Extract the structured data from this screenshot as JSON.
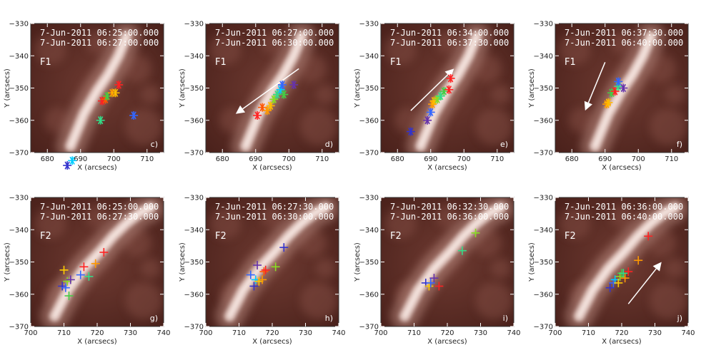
{
  "chart_data": [
    {
      "type": "scatter",
      "panel": "c)",
      "feature": "F1",
      "times": [
        "7-Jun-2011 06:25:00.000",
        "7-Jun-2011 06:27:00.000"
      ],
      "xlabel": "X (arcsecs)",
      "ylabel": "Y (arcsecs)",
      "xlim": [
        675,
        715
      ],
      "ylim": [
        -370,
        -330
      ],
      "xticks": [
        680,
        690,
        700,
        710
      ],
      "yticks": [
        -370,
        -360,
        -350,
        -340,
        -330
      ],
      "marker": "asterisk",
      "arrow": null,
      "points": [
        {
          "x": 686,
          "y": -374,
          "color": "#3333cc"
        },
        {
          "x": 687.5,
          "y": -372.5,
          "color": "#00ccff"
        },
        {
          "x": 706,
          "y": -358.5,
          "color": "#3366ff"
        },
        {
          "x": 696,
          "y": -360,
          "color": "#33dd88"
        },
        {
          "x": 696.5,
          "y": -354,
          "color": "#ff2222"
        },
        {
          "x": 697.5,
          "y": -353.5,
          "color": "#ff5500"
        },
        {
          "x": 698,
          "y": -352.5,
          "color": "#44cc44"
        },
        {
          "x": 699.5,
          "y": -351.5,
          "color": "#ff9900"
        },
        {
          "x": 700.5,
          "y": -351.5,
          "color": "#ffbb00"
        },
        {
          "x": 701.5,
          "y": -349,
          "color": "#ff2222"
        }
      ]
    },
    {
      "type": "scatter",
      "panel": "d)",
      "feature": "F1",
      "times": [
        "7-Jun-2011 06:27:00.000",
        "7-Jun-2011 06:30:00.000"
      ],
      "xlabel": "X (arcsecs)",
      "ylabel": "Y (arcsecs)",
      "xlim": [
        675,
        715
      ],
      "ylim": [
        -370,
        -330
      ],
      "xticks": [
        680,
        690,
        700,
        710
      ],
      "yticks": [
        -370,
        -360,
        -350,
        -340,
        -330
      ],
      "marker": "asterisk",
      "arrow": {
        "from": [
          703,
          -344
        ],
        "to": [
          684,
          -358
        ]
      },
      "points": [
        {
          "x": 690.5,
          "y": -358.5,
          "color": "#ff2222"
        },
        {
          "x": 692,
          "y": -356,
          "color": "#ff5500"
        },
        {
          "x": 693.5,
          "y": -357,
          "color": "#ff9900"
        },
        {
          "x": 694.5,
          "y": -355.5,
          "color": "#ffbb00"
        },
        {
          "x": 695.5,
          "y": -353.5,
          "color": "#88dd22"
        },
        {
          "x": 696.5,
          "y": -352,
          "color": "#33dd88"
        },
        {
          "x": 697.5,
          "y": -350.5,
          "color": "#00ccff"
        },
        {
          "x": 698,
          "y": -349,
          "color": "#3366ff"
        },
        {
          "x": 698.5,
          "y": -352,
          "color": "#44cc44"
        },
        {
          "x": 701.5,
          "y": -349,
          "color": "#6633aa"
        }
      ]
    },
    {
      "type": "scatter",
      "panel": "e)",
      "feature": "F1",
      "times": [
        "7-Jun-2011 06:34:00.000",
        "7-Jun-2011 06:37:30.000"
      ],
      "xlabel": "X (arcsecs)",
      "ylabel": "Y (arcsecs)",
      "xlim": [
        675,
        715
      ],
      "ylim": [
        -370,
        -330
      ],
      "xticks": [
        680,
        690,
        700,
        710
      ],
      "yticks": [
        -370,
        -360,
        -350,
        -340,
        -330
      ],
      "marker": "asterisk",
      "arrow": {
        "from": [
          684,
          -357
        ],
        "to": [
          697,
          -344
        ]
      },
      "points": [
        {
          "x": 684,
          "y": -363.5,
          "color": "#3333cc"
        },
        {
          "x": 689,
          "y": -360,
          "color": "#6633aa"
        },
        {
          "x": 690,
          "y": -357.5,
          "color": "#3366ff"
        },
        {
          "x": 690.5,
          "y": -355,
          "color": "#ff9900"
        },
        {
          "x": 691,
          "y": -354,
          "color": "#ffbb00"
        },
        {
          "x": 692,
          "y": -353.5,
          "color": "#88dd22"
        },
        {
          "x": 693,
          "y": -352.5,
          "color": "#33dd88"
        },
        {
          "x": 694,
          "y": -351,
          "color": "#44cc44"
        },
        {
          "x": 695.5,
          "y": -350.5,
          "color": "#ff2222"
        },
        {
          "x": 696,
          "y": -347,
          "color": "#ff2222"
        }
      ]
    },
    {
      "type": "scatter",
      "panel": "f)",
      "feature": "F1",
      "times": [
        "7-Jun-2011 06:37:30.000",
        "7-Jun-2011 06:40:00.000"
      ],
      "xlabel": "X (arcsecs)",
      "ylabel": "Y (arcsecs)",
      "xlim": [
        675,
        715
      ],
      "ylim": [
        -370,
        -330
      ],
      "xticks": [
        680,
        690,
        700,
        710
      ],
      "yticks": [
        -370,
        -360,
        -350,
        -340,
        -330
      ],
      "marker": "asterisk",
      "arrow": {
        "from": [
          690,
          -342
        ],
        "to": [
          684,
          -357
        ]
      },
      "points": [
        {
          "x": 690.5,
          "y": -355,
          "color": "#ff9900"
        },
        {
          "x": 691,
          "y": -354.5,
          "color": "#ffbb00"
        },
        {
          "x": 692,
          "y": -351.5,
          "color": "#44cc44"
        },
        {
          "x": 693,
          "y": -351,
          "color": "#ff2222"
        },
        {
          "x": 694,
          "y": -349.5,
          "color": "#33dd88"
        },
        {
          "x": 694,
          "y": -348,
          "color": "#3366ff"
        },
        {
          "x": 695.5,
          "y": -350,
          "color": "#6633aa"
        }
      ]
    },
    {
      "type": "scatter",
      "panel": "g)",
      "feature": "F2",
      "times": [
        "7-Jun-2011 06:25:00.000",
        "7-Jun-2011 06:27:30.000"
      ],
      "xlabel": "X (arcsecs)",
      "ylabel": "Y (arcsecs)",
      "xlim": [
        700,
        740
      ],
      "ylim": [
        -370,
        -330
      ],
      "xticks": [
        700,
        710,
        720,
        730,
        740
      ],
      "yticks": [
        -370,
        -360,
        -350,
        -340,
        -330
      ],
      "marker": "plus",
      "arrow": null,
      "points": [
        {
          "x": 710,
          "y": -352.5,
          "color": "#ffcc00"
        },
        {
          "x": 709.5,
          "y": -357.5,
          "color": "#3333cc"
        },
        {
          "x": 710.5,
          "y": -358,
          "color": "#3366ff"
        },
        {
          "x": 711,
          "y": -356,
          "color": "#88dd22"
        },
        {
          "x": 711.5,
          "y": -360.5,
          "color": "#44cc44"
        },
        {
          "x": 712,
          "y": -355.5,
          "color": "#6633aa"
        },
        {
          "x": 715,
          "y": -354,
          "color": "#3366ff"
        },
        {
          "x": 716,
          "y": -351.5,
          "color": "#ff2222"
        },
        {
          "x": 717.5,
          "y": -354.5,
          "color": "#33dd88"
        },
        {
          "x": 719.5,
          "y": -350.5,
          "color": "#ff9900"
        },
        {
          "x": 722,
          "y": -347,
          "color": "#ff2222"
        }
      ]
    },
    {
      "type": "scatter",
      "panel": "h)",
      "feature": "F2",
      "times": [
        "7-Jun-2011 06:27:30.000",
        "7-Jun-2011 06:30:00.000"
      ],
      "xlabel": "X (arcsecs)",
      "ylabel": "Y (arcsecs)",
      "xlim": [
        700,
        740
      ],
      "ylim": [
        -370,
        -330
      ],
      "xticks": [
        700,
        710,
        720,
        730,
        740
      ],
      "yticks": [
        -370,
        -360,
        -350,
        -340,
        -330
      ],
      "marker": "plus",
      "arrow": null,
      "points": [
        {
          "x": 713.5,
          "y": -354,
          "color": "#3366ff"
        },
        {
          "x": 714.5,
          "y": -357.5,
          "color": "#3333cc"
        },
        {
          "x": 715,
          "y": -355.5,
          "color": "#00ccff"
        },
        {
          "x": 715.5,
          "y": -351,
          "color": "#6633aa"
        },
        {
          "x": 716,
          "y": -356,
          "color": "#ffcc00"
        },
        {
          "x": 717,
          "y": -355.5,
          "color": "#ff9900"
        },
        {
          "x": 717.5,
          "y": -353,
          "color": "#ff5500"
        },
        {
          "x": 718,
          "y": -352.5,
          "color": "#ff2222"
        },
        {
          "x": 721,
          "y": -351.5,
          "color": "#88dd22"
        },
        {
          "x": 723.5,
          "y": -345.5,
          "color": "#3333cc"
        }
      ]
    },
    {
      "type": "scatter",
      "panel": "i)",
      "feature": "F2",
      "times": [
        "7-Jun-2011 06:32:30.000",
        "7-Jun-2011 06:36:00.000"
      ],
      "xlabel": "X (arcsecs)",
      "ylabel": "Y (arcsecs)",
      "xlim": [
        700,
        740
      ],
      "ylim": [
        -370,
        -330
      ],
      "xticks": [
        700,
        710,
        720,
        730,
        740
      ],
      "yticks": [
        -370,
        -360,
        -350,
        -340,
        -330
      ],
      "marker": "plus",
      "arrow": null,
      "points": [
        {
          "x": 713.5,
          "y": -356.5,
          "color": "#3333cc"
        },
        {
          "x": 714.5,
          "y": -357.5,
          "color": "#ffcc00"
        },
        {
          "x": 715,
          "y": -356.5,
          "color": "#3366ff"
        },
        {
          "x": 716,
          "y": -355,
          "color": "#6633aa"
        },
        {
          "x": 717.5,
          "y": -357.5,
          "color": "#ff2222"
        },
        {
          "x": 724.5,
          "y": -346.5,
          "color": "#33dd88"
        },
        {
          "x": 728.5,
          "y": -341,
          "color": "#88dd22"
        }
      ]
    },
    {
      "type": "scatter",
      "panel": "j)",
      "feature": "F2",
      "times": [
        "7-Jun-2011 06:36:00.000",
        "7-Jun-2011 06:40:00.000"
      ],
      "xlabel": "X (arcsecs)",
      "ylabel": "Y (arcsecs)",
      "xlim": [
        700,
        740
      ],
      "ylim": [
        -370,
        -330
      ],
      "xticks": [
        700,
        710,
        720,
        730,
        740
      ],
      "yticks": [
        -370,
        -360,
        -350,
        -340,
        -330
      ],
      "marker": "plus",
      "arrow": {
        "from": [
          722,
          -363
        ],
        "to": [
          732,
          -350
        ]
      },
      "points": [
        {
          "x": 716.5,
          "y": -358,
          "color": "#3333cc"
        },
        {
          "x": 717.5,
          "y": -356.5,
          "color": "#3366ff"
        },
        {
          "x": 718,
          "y": -355.5,
          "color": "#00ccff"
        },
        {
          "x": 719,
          "y": -356.5,
          "color": "#ffcc00"
        },
        {
          "x": 719.5,
          "y": -354.5,
          "color": "#88dd22"
        },
        {
          "x": 720,
          "y": -353.5,
          "color": "#44cc44"
        },
        {
          "x": 720.5,
          "y": -353.5,
          "color": "#33dd88"
        },
        {
          "x": 721,
          "y": -355,
          "color": "#ff9900"
        },
        {
          "x": 722,
          "y": -353,
          "color": "#ff2222"
        },
        {
          "x": 725,
          "y": -349.5,
          "color": "#ff9900"
        },
        {
          "x": 728,
          "y": -342,
          "color": "#ff2222"
        }
      ]
    }
  ]
}
